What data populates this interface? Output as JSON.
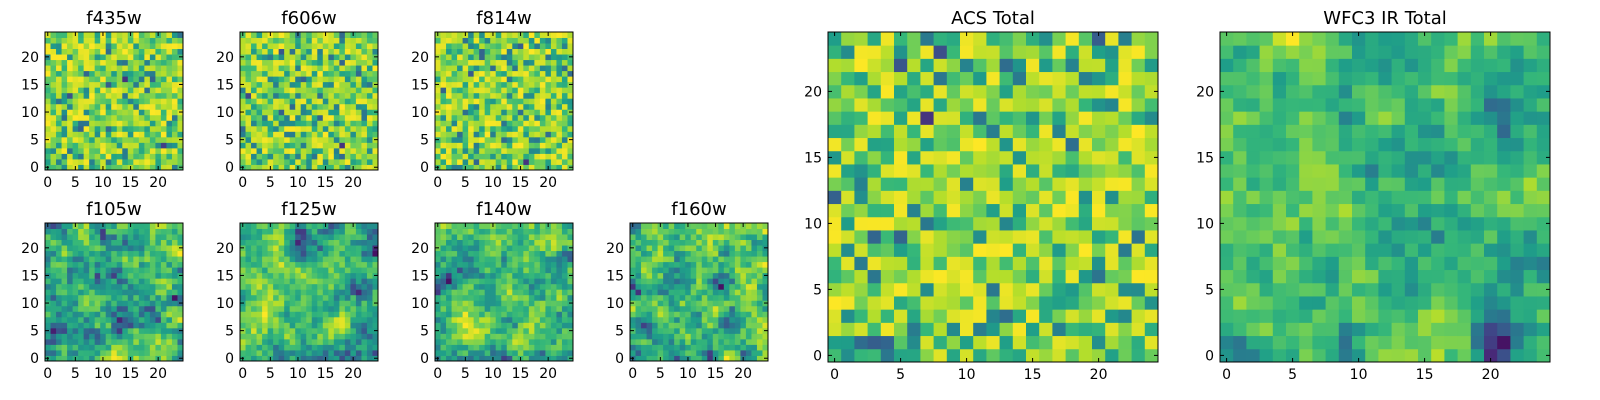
{
  "chart_data": [
    {
      "type": "heatmap",
      "title": "f435w",
      "seed": 11,
      "mode": "noise",
      "xticks": [
        "0",
        "5",
        "10",
        "15",
        "20"
      ],
      "yticks": [
        "0",
        "5",
        "10",
        "15",
        "20"
      ],
      "xlim": [
        0,
        24
      ],
      "ylim": [
        0,
        24
      ],
      "colormap": "viridis",
      "grid": false
    },
    {
      "type": "heatmap",
      "title": "f606w",
      "seed": 23,
      "mode": "noise",
      "xticks": [
        "0",
        "5",
        "10",
        "15",
        "20"
      ],
      "yticks": [
        "0",
        "5",
        "10",
        "15",
        "20"
      ],
      "xlim": [
        0,
        24
      ],
      "ylim": [
        0,
        24
      ],
      "colormap": "viridis",
      "grid": false
    },
    {
      "type": "heatmap",
      "title": "f814w",
      "seed": 37,
      "mode": "noise",
      "xticks": [
        "0",
        "5",
        "10",
        "15",
        "20"
      ],
      "yticks": [
        "0",
        "5",
        "10",
        "15",
        "20"
      ],
      "xlim": [
        0,
        24
      ],
      "ylim": [
        0,
        24
      ],
      "colormap": "viridis",
      "grid": false
    },
    {
      "type": "heatmap",
      "title": "f105w",
      "seed": 41,
      "mode": "smooth",
      "xticks": [
        "0",
        "5",
        "10",
        "15",
        "20"
      ],
      "yticks": [
        "0",
        "5",
        "10",
        "15",
        "20"
      ],
      "xlim": [
        0,
        24
      ],
      "ylim": [
        0,
        24
      ],
      "colormap": "viridis",
      "grid": false
    },
    {
      "type": "heatmap",
      "title": "f125w",
      "seed": 53,
      "mode": "smooth",
      "xticks": [
        "0",
        "5",
        "10",
        "15",
        "20"
      ],
      "yticks": [
        "0",
        "5",
        "10",
        "15",
        "20"
      ],
      "xlim": [
        0,
        24
      ],
      "ylim": [
        0,
        24
      ],
      "colormap": "viridis",
      "grid": false
    },
    {
      "type": "heatmap",
      "title": "f140w",
      "seed": 67,
      "mode": "smooth",
      "xticks": [
        "0",
        "5",
        "10",
        "15",
        "20"
      ],
      "yticks": [
        "0",
        "5",
        "10",
        "15",
        "20"
      ],
      "xlim": [
        0,
        24
      ],
      "ylim": [
        0,
        24
      ],
      "colormap": "viridis",
      "grid": false
    },
    {
      "type": "heatmap",
      "title": "f160w",
      "seed": 79,
      "mode": "smooth",
      "xticks": [
        "0",
        "5",
        "10",
        "15",
        "20"
      ],
      "yticks": [
        "0",
        "5",
        "10",
        "15",
        "20"
      ],
      "xlim": [
        0,
        24
      ],
      "ylim": [
        0,
        24
      ],
      "colormap": "viridis",
      "grid": false
    },
    {
      "type": "heatmap",
      "title": "ACS Total",
      "seed": 97,
      "mode": "noise",
      "xticks": [
        "0",
        "5",
        "10",
        "15",
        "20"
      ],
      "yticks": [
        "0",
        "5",
        "10",
        "15",
        "20"
      ],
      "xlim": [
        0,
        24
      ],
      "ylim": [
        0,
        24
      ],
      "colormap": "viridis",
      "grid": false
    },
    {
      "type": "heatmap",
      "title": "WFC3 IR Total",
      "seed": 131,
      "mode": "smooth",
      "xticks": [
        "0",
        "5",
        "10",
        "15",
        "20"
      ],
      "yticks": [
        "0",
        "5",
        "10",
        "15",
        "20"
      ],
      "xlim": [
        0,
        24
      ],
      "ylim": [
        0,
        24
      ],
      "colormap": "viridis",
      "grid": false
    }
  ]
}
